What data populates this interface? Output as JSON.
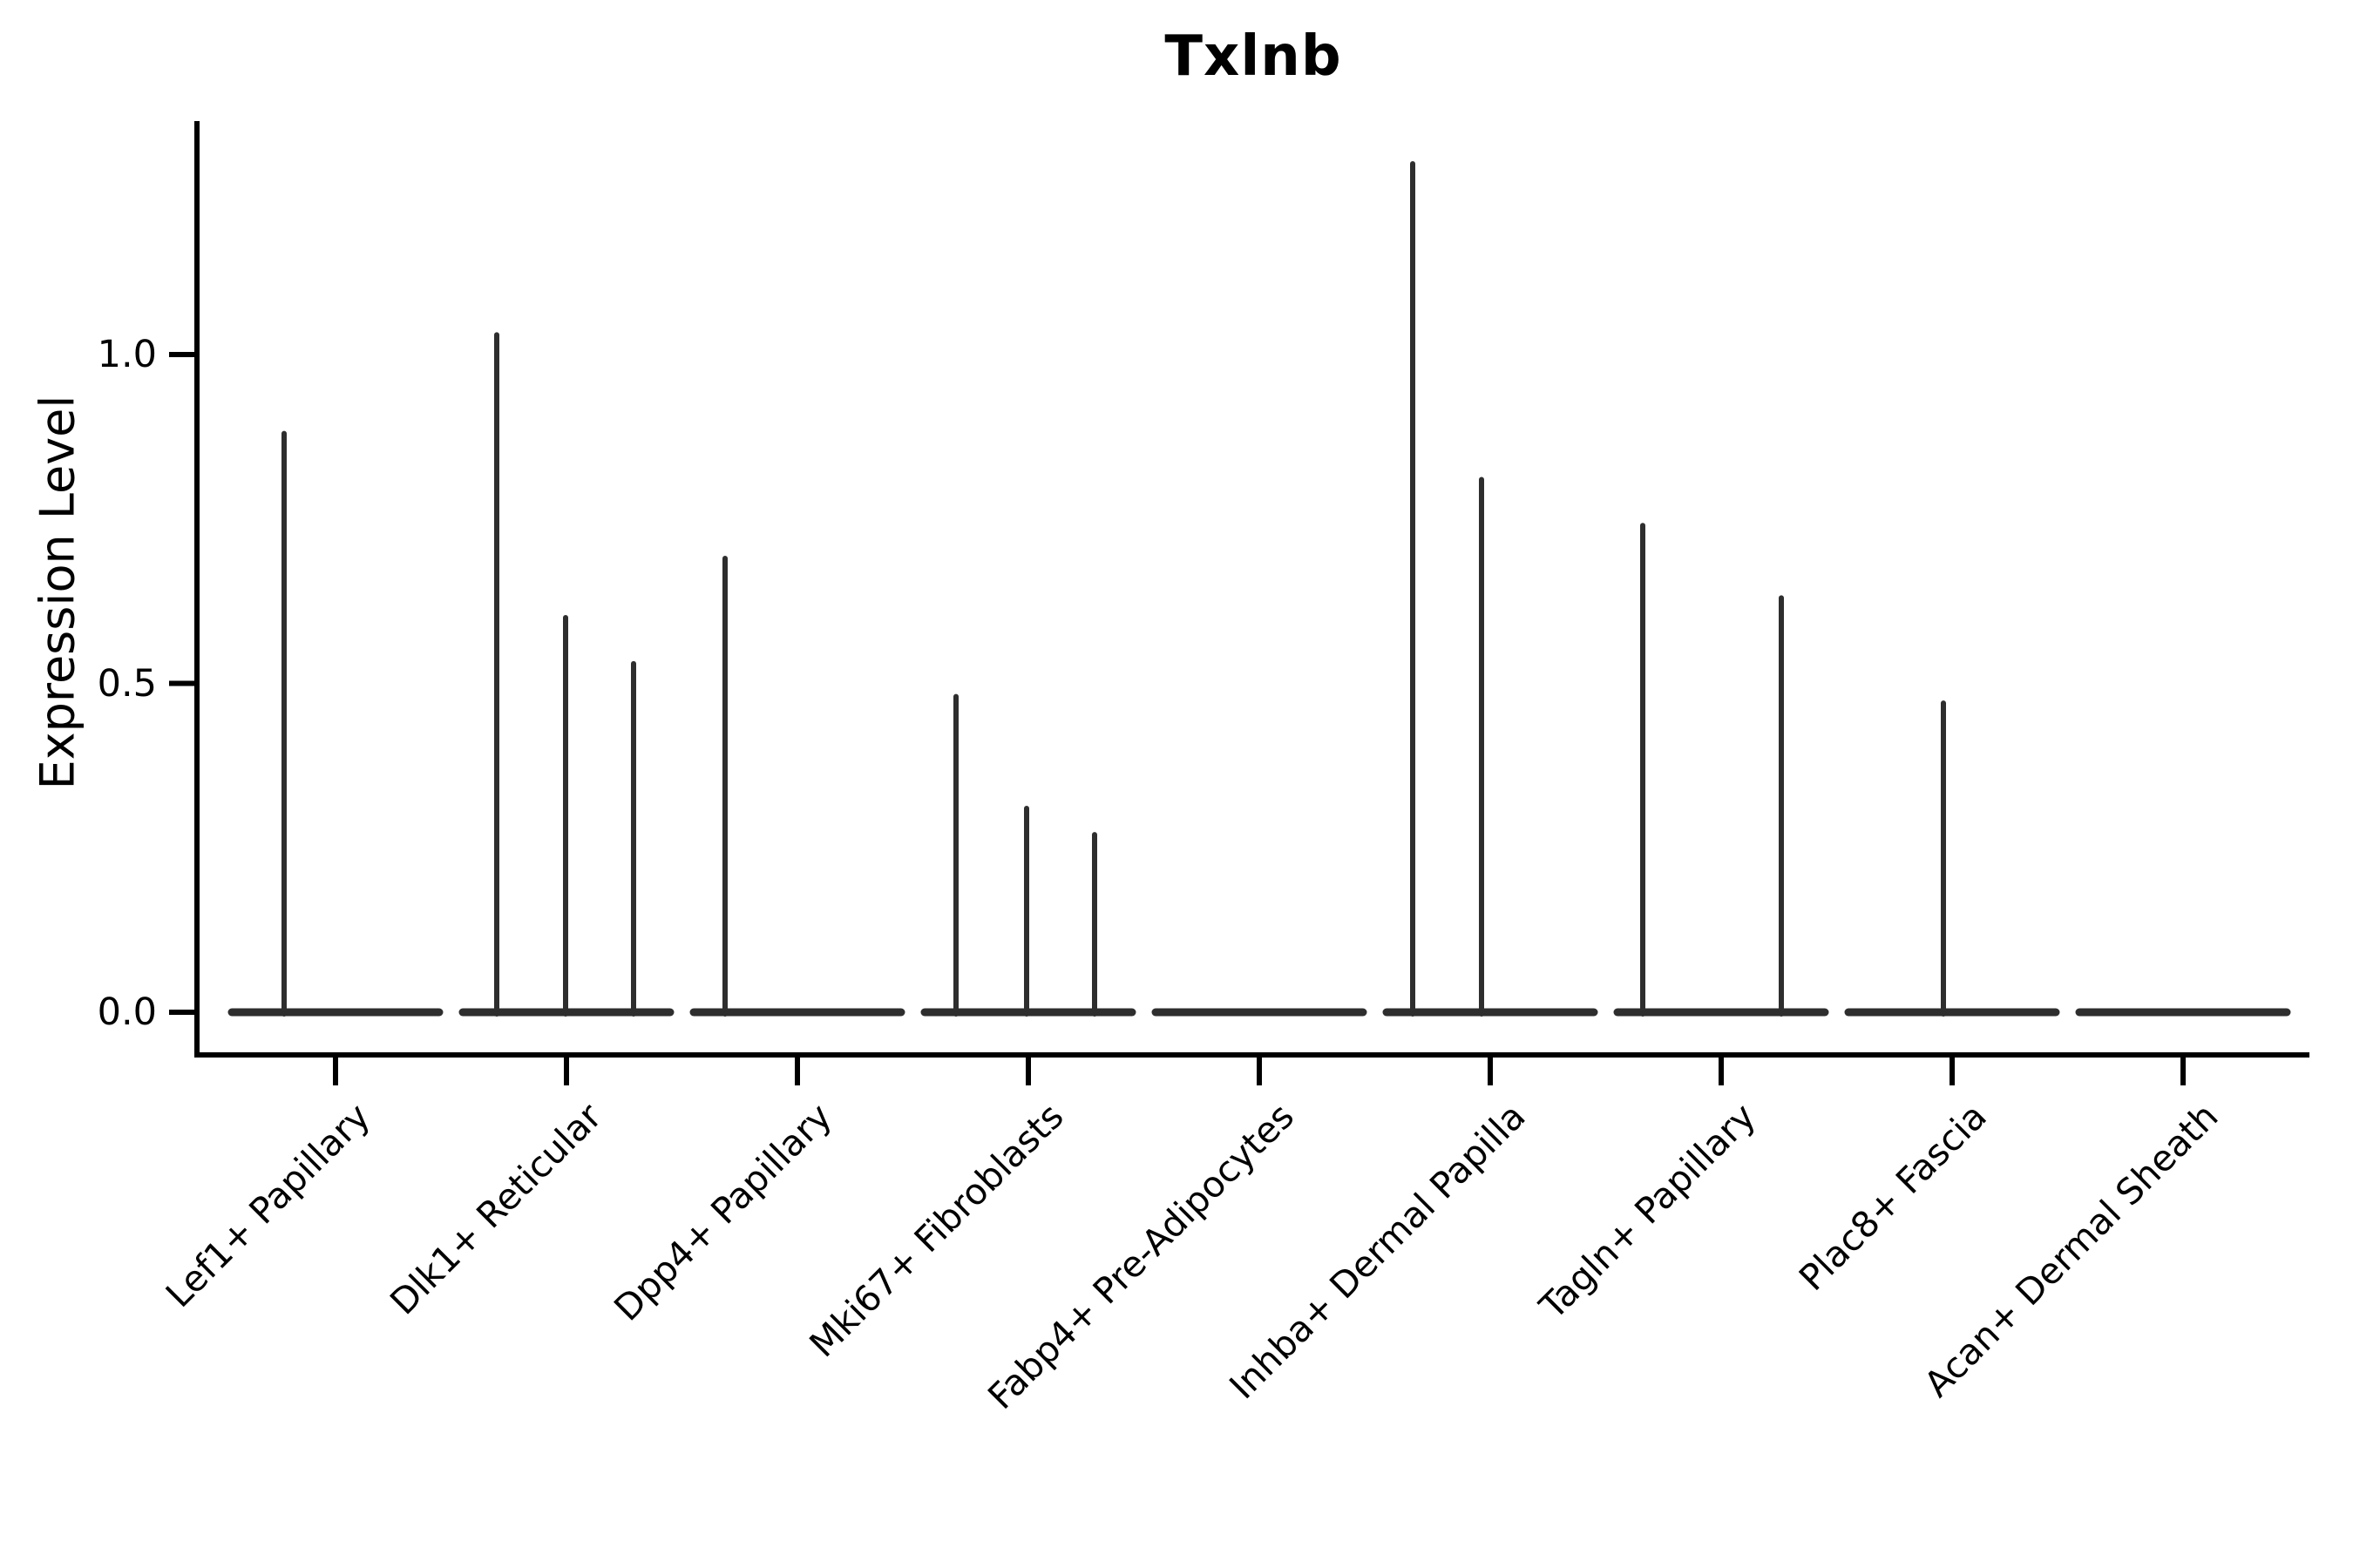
{
  "chart_data": {
    "type": "violin",
    "title": "Txlnb",
    "xlabel": "",
    "ylabel": "Expression Level",
    "ytick_labels": [
      "0.0",
      "0.5",
      "1.0"
    ],
    "ytick_values": [
      0.0,
      0.5,
      1.0
    ],
    "ylim": [
      -0.07,
      1.36
    ],
    "grid": false,
    "legend": null,
    "categories": [
      "Lef1+ Papillary",
      "Dlk1+ Reticular",
      "Dpp4+ Papillary",
      "Mki67+ Fibroblasts",
      "Fabp4+ Pre-Adipocytes",
      "Inhba+ Dermal Papilla",
      "Tagln+ Papillary",
      "Plac8+ Fascia",
      "Acan+ Dermal Sheath"
    ],
    "series": [
      {
        "name": "Lef1+ Papillary",
        "spikes": [
          {
            "dx": -59,
            "value": 0.88
          }
        ]
      },
      {
        "name": "Dlk1+ Reticular",
        "spikes": [
          {
            "dx": -80,
            "value": 1.03
          },
          {
            "dx": -1,
            "value": 0.6
          },
          {
            "dx": 77,
            "value": 0.53
          }
        ]
      },
      {
        "name": "Dpp4+ Papillary",
        "spikes": [
          {
            "dx": -83,
            "value": 0.69
          }
        ]
      },
      {
        "name": "Mki67+ Fibroblasts",
        "spikes": [
          {
            "dx": -83,
            "value": 0.48
          },
          {
            "dx": -2,
            "value": 0.31
          },
          {
            "dx": 76,
            "value": 0.27
          }
        ]
      },
      {
        "name": "Fabp4+ Pre-Adipocytes",
        "spikes": []
      },
      {
        "name": "Inhba+ Dermal Papilla",
        "spikes": [
          {
            "dx": -89,
            "value": 1.29
          },
          {
            "dx": -10,
            "value": 0.81
          }
        ]
      },
      {
        "name": "Tagln+ Papillary",
        "spikes": [
          {
            "dx": -90,
            "value": 0.74
          },
          {
            "dx": 69,
            "value": 0.63
          }
        ]
      },
      {
        "name": "Plac8+ Fascia",
        "spikes": [
          {
            "dx": -10,
            "value": 0.47
          }
        ]
      },
      {
        "name": "Acan+ Dermal Sheath",
        "spikes": []
      }
    ],
    "baseline_value": 0.0,
    "colors": {
      "violin": "#2e2e2e",
      "axis": "#000000",
      "text": "#000000",
      "background": "#ffffff"
    }
  }
}
